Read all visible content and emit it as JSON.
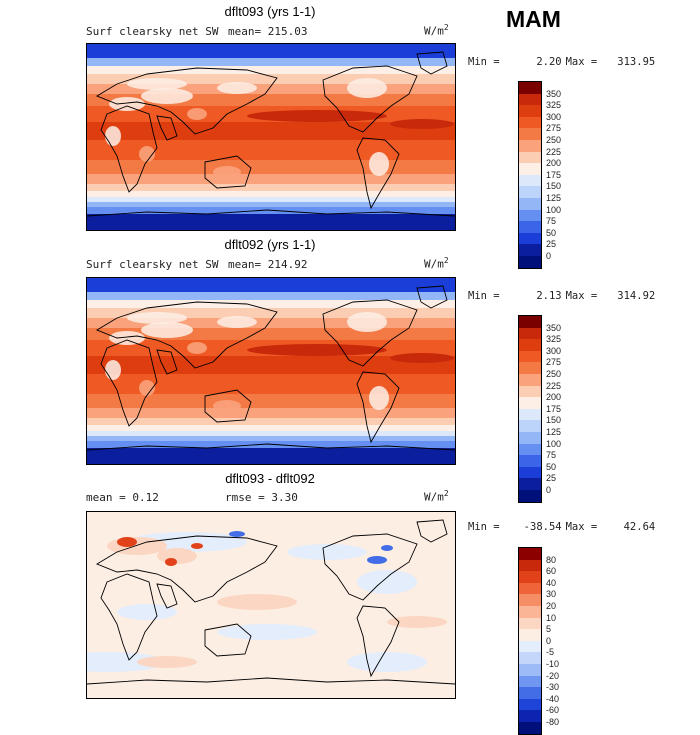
{
  "season": "MAM",
  "panels": [
    {
      "title": "dflt093 (yrs 1-1)",
      "left_label": "Surf clearsky net SW",
      "stat_text": "mean= 215.03",
      "units": "W/m",
      "units_sup": "2",
      "min_label": "Min =",
      "min_value": "2.20",
      "max_label": "Max =",
      "max_value": "313.95",
      "kind": "field"
    },
    {
      "title": "dflt092 (yrs 1-1)",
      "left_label": "Surf clearsky net SW",
      "stat_text": "mean= 214.92",
      "units": "W/m",
      "units_sup": "2",
      "min_label": "Min =",
      "min_value": "2.13",
      "max_label": "Max =",
      "max_value": "314.92",
      "kind": "field"
    },
    {
      "title": "dflt093 - dflt092",
      "left_label": "mean =   0.12",
      "stat_text": "rmse =   3.30",
      "units": "W/m",
      "units_sup": "2",
      "min_label": "Min =",
      "min_value": "-38.54",
      "max_label": "Max =",
      "max_value": "42.64",
      "kind": "diff"
    }
  ],
  "chart_data": [
    {
      "type": "heatmap",
      "title": "dflt093 (yrs 1-1)",
      "variable": "Surf clearsky net SW",
      "units": "W/m2",
      "mean": 215.03,
      "min": 2.2,
      "max": 313.95,
      "colorbar_levels": [
        "350",
        "325",
        "300",
        "275",
        "250",
        "225",
        "200",
        "175",
        "150",
        "125",
        "100",
        "75",
        "50",
        "25",
        "0"
      ],
      "colorbar_colors": [
        "#7a0000",
        "#c8290a",
        "#de3d10",
        "#ef5a24",
        "#f47a45",
        "#f9a27b",
        "#fbcdb3",
        "#fdeee6",
        "#dde9fb",
        "#bcd3fa",
        "#93b6f7",
        "#6590f2",
        "#3a65e8",
        "#1b3ed8",
        "#0b1e9e",
        "#00107a"
      ]
    },
    {
      "type": "heatmap",
      "title": "dflt092 (yrs 1-1)",
      "variable": "Surf clearsky net SW",
      "units": "W/m2",
      "mean": 214.92,
      "min": 2.13,
      "max": 314.92,
      "colorbar_levels": [
        "350",
        "325",
        "300",
        "275",
        "250",
        "225",
        "200",
        "175",
        "150",
        "125",
        "100",
        "75",
        "50",
        "25",
        "0"
      ],
      "colorbar_colors": [
        "#7a0000",
        "#c8290a",
        "#de3d10",
        "#ef5a24",
        "#f47a45",
        "#f9a27b",
        "#fbcdb3",
        "#fdeee6",
        "#dde9fb",
        "#bcd3fa",
        "#93b6f7",
        "#6590f2",
        "#3a65e8",
        "#1b3ed8",
        "#0b1e9e",
        "#00107a"
      ]
    },
    {
      "type": "heatmap",
      "title": "dflt093 - dflt092",
      "units": "W/m2",
      "mean": 0.12,
      "rmse": 3.3,
      "min": -38.54,
      "max": 42.64,
      "colorbar_levels": [
        "80",
        "60",
        "40",
        "30",
        "20",
        "10",
        "5",
        "0",
        "-5",
        "-10",
        "-20",
        "-30",
        "-40",
        "-60",
        "-80"
      ],
      "colorbar_colors": [
        "#8c0000",
        "#c8290a",
        "#e2421a",
        "#f0643a",
        "#f58d67",
        "#f9b596",
        "#fbd7c3",
        "#fdeee4",
        "#e3edfc",
        "#c4d7fa",
        "#9dbcf7",
        "#6f97f1",
        "#436de6",
        "#1f45d8",
        "#0c24b0",
        "#00107a"
      ]
    }
  ]
}
